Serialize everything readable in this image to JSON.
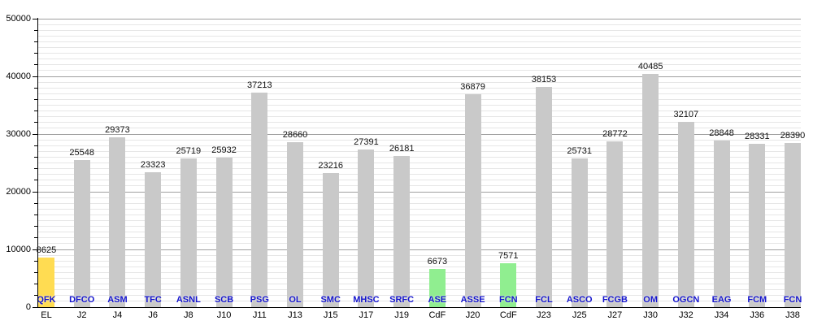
{
  "chart_data": {
    "type": "bar",
    "title": "",
    "subtitle": "",
    "xlabel": "",
    "ylabel": "",
    "ylim": [
      0,
      50000
    ],
    "y_major_ticks": [
      0,
      10000,
      20000,
      30000,
      40000,
      50000
    ],
    "y_minor_tick_step": 2000,
    "y_minor_grid_step": 1000,
    "y_major_grid_step": 10000,
    "grid": "horizontal-only",
    "legend_position": "none",
    "categories": [
      "EL",
      "J2",
      "J4",
      "J6",
      "J8",
      "J10",
      "J11",
      "J13",
      "J15",
      "J17",
      "J19",
      "CdF",
      "J20",
      "CdF",
      "J23",
      "J25",
      "J27",
      "J30",
      "J32",
      "J34",
      "J36",
      "J38"
    ],
    "bars": [
      {
        "team": "QFK",
        "round": "EL",
        "value": 8625,
        "color": "yellow"
      },
      {
        "team": "DFCO",
        "round": "J2",
        "value": 25548,
        "color": "default"
      },
      {
        "team": "ASM",
        "round": "J4",
        "value": 29373,
        "color": "default"
      },
      {
        "team": "TFC",
        "round": "J6",
        "value": 23323,
        "color": "default"
      },
      {
        "team": "ASNL",
        "round": "J8",
        "value": 25719,
        "color": "default"
      },
      {
        "team": "SCB",
        "round": "J10",
        "value": 25932,
        "color": "default"
      },
      {
        "team": "PSG",
        "round": "J11",
        "value": 37213,
        "color": "default"
      },
      {
        "team": "OL",
        "round": "J13",
        "value": 28660,
        "color": "default"
      },
      {
        "team": "SMC",
        "round": "J15",
        "value": 23216,
        "color": "default"
      },
      {
        "team": "MHSC",
        "round": "J17",
        "value": 27391,
        "color": "default"
      },
      {
        "team": "SRFC",
        "round": "J19",
        "value": 26181,
        "color": "default"
      },
      {
        "team": "ASE",
        "round": "CdF",
        "value": 6673,
        "color": "green"
      },
      {
        "team": "ASSE",
        "round": "J20",
        "value": 36879,
        "color": "default"
      },
      {
        "team": "FCN",
        "round": "CdF",
        "value": 7571,
        "color": "green"
      },
      {
        "team": "FCL",
        "round": "J23",
        "value": 38153,
        "color": "default"
      },
      {
        "team": "ASCO",
        "round": "J25",
        "value": 25731,
        "color": "default"
      },
      {
        "team": "FCGB",
        "round": "J27",
        "value": 28772,
        "color": "default"
      },
      {
        "team": "OM",
        "round": "J30",
        "value": 40485,
        "color": "default"
      },
      {
        "team": "OGCN",
        "round": "J32",
        "value": 32107,
        "color": "default"
      },
      {
        "team": "EAG",
        "round": "J34",
        "value": 28848,
        "color": "default"
      },
      {
        "team": "FCM",
        "round": "J36",
        "value": 28331,
        "color": "default"
      },
      {
        "team": "FCN",
        "round": "J38",
        "value": 28390,
        "color": "default"
      }
    ],
    "colors": {
      "default": "#C9C9C9",
      "yellow": "#FFDC52",
      "green": "#90EE90",
      "team_label": "#1414CC",
      "value_label": "#111111",
      "axis": "#000000",
      "grid_minor": "#E6E6E6",
      "grid_major": "#9F9F9F"
    }
  }
}
